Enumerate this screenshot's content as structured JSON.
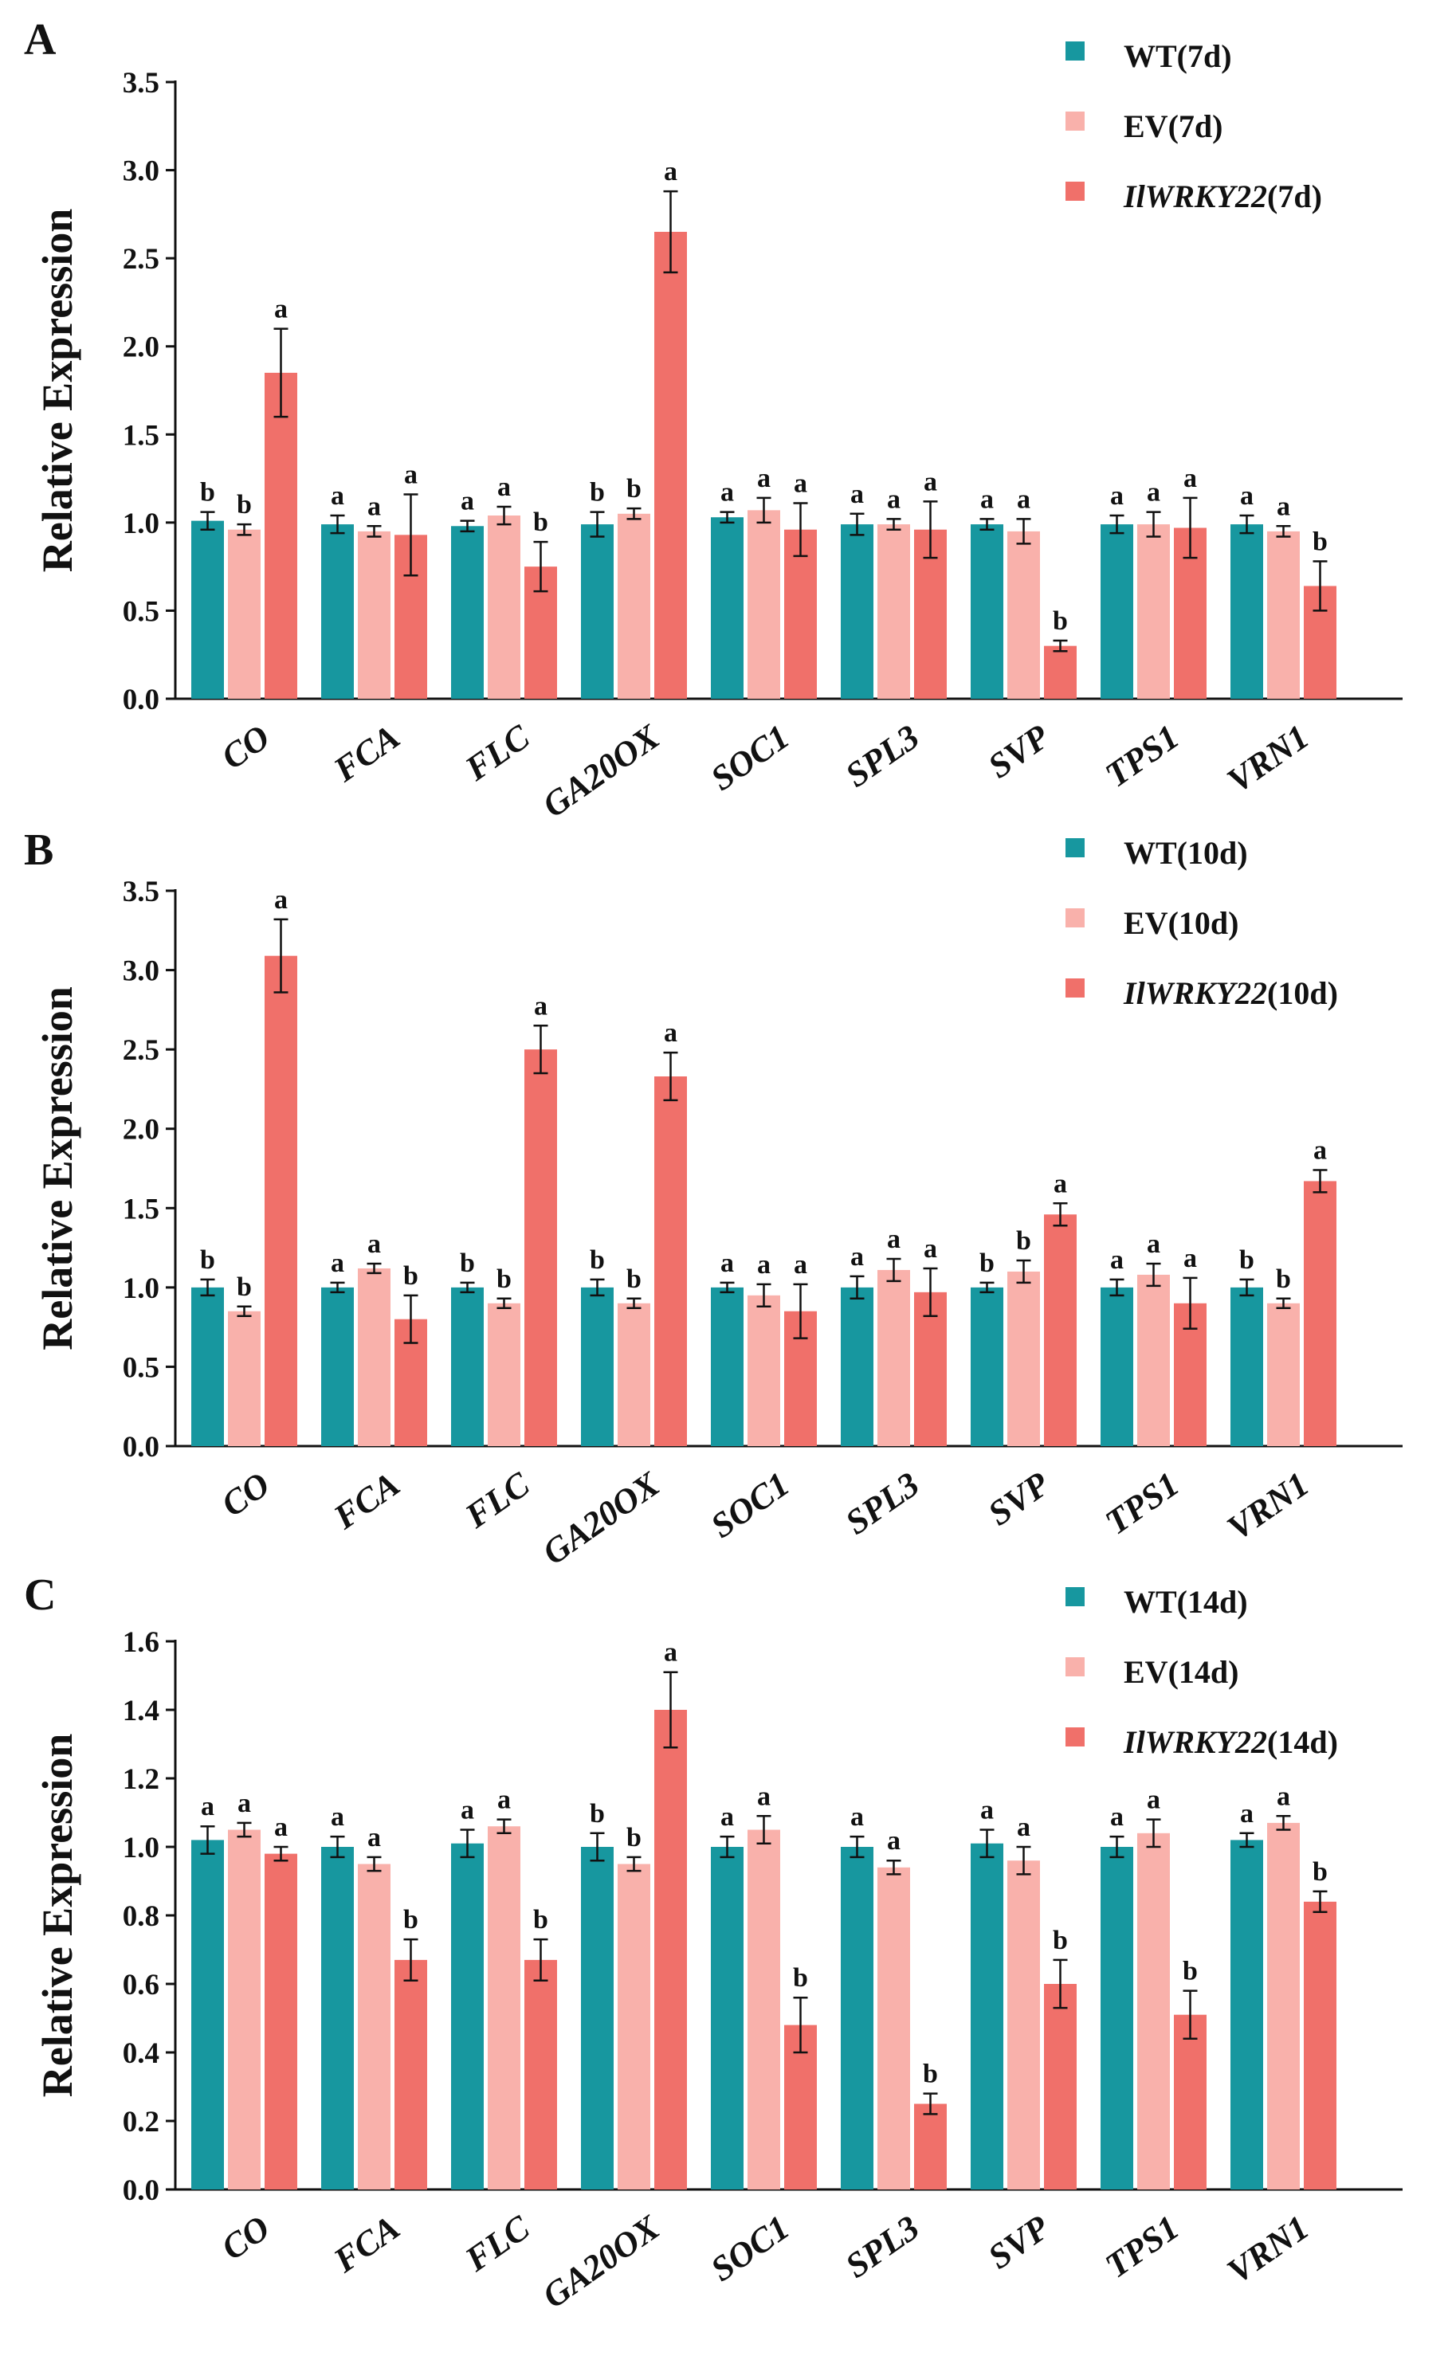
{
  "chart_data": [
    {
      "type": "bar",
      "panel": "A",
      "ylabel": "Relative Expression",
      "ylim": [
        0,
        3.5
      ],
      "yticks": [
        "0.0",
        "0.5",
        "1.0",
        "1.5",
        "2.0",
        "2.5",
        "3.0",
        "3.5"
      ],
      "categories": [
        "CO",
        "FCA",
        "FLC",
        "GA20OX",
        "SOC1",
        "SPL3",
        "SVP",
        "TPS1",
        "VRN1"
      ],
      "series": [
        {
          "name": "WT(7d)",
          "legend_prefix": "",
          "legend_suffix": "WT(7d)",
          "color": "#17979f",
          "values": [
            1.01,
            0.99,
            0.98,
            0.99,
            1.03,
            0.99,
            0.99,
            0.99,
            0.99
          ],
          "errors": [
            0.05,
            0.05,
            0.03,
            0.07,
            0.03,
            0.06,
            0.03,
            0.05,
            0.05
          ],
          "labels": [
            "b",
            "a",
            "a",
            "b",
            "a",
            "a",
            "a",
            "a",
            "a"
          ]
        },
        {
          "name": "EV(7d)",
          "legend_prefix": "",
          "legend_suffix": "EV(7d)",
          "color": "#f9b1ab",
          "values": [
            0.96,
            0.95,
            1.04,
            1.05,
            1.07,
            0.99,
            0.95,
            0.99,
            0.95
          ],
          "errors": [
            0.03,
            0.03,
            0.05,
            0.03,
            0.07,
            0.03,
            0.07,
            0.07,
            0.03
          ],
          "labels": [
            "b",
            "a",
            "a",
            "b",
            "a",
            "a",
            "a",
            "a",
            "a"
          ]
        },
        {
          "name": "IlWRKY22(7d)",
          "legend_prefix": "IlWRKY22",
          "legend_suffix": "(7d)",
          "color": "#f0706a",
          "values": [
            1.85,
            0.93,
            0.75,
            2.65,
            0.96,
            0.96,
            0.3,
            0.97,
            0.64
          ],
          "errors": [
            0.25,
            0.23,
            0.14,
            0.23,
            0.15,
            0.16,
            0.03,
            0.17,
            0.14
          ],
          "labels": [
            "a",
            "a",
            "b",
            "a",
            "a",
            "a",
            "b",
            "a",
            "b"
          ]
        }
      ]
    },
    {
      "type": "bar",
      "panel": "B",
      "ylabel": "Relative Expression",
      "ylim": [
        0,
        3.5
      ],
      "yticks": [
        "0.0",
        "0.5",
        "1.0",
        "1.5",
        "2.0",
        "2.5",
        "3.0",
        "3.5"
      ],
      "categories": [
        "CO",
        "FCA",
        "FLC",
        "GA20OX",
        "SOC1",
        "SPL3",
        "SVP",
        "TPS1",
        "VRN1"
      ],
      "series": [
        {
          "name": "WT(10d)",
          "legend_prefix": "",
          "legend_suffix": "WT(10d)",
          "color": "#17979f",
          "values": [
            1.0,
            1.0,
            1.0,
            1.0,
            1.0,
            1.0,
            1.0,
            1.0,
            1.0
          ],
          "errors": [
            0.05,
            0.03,
            0.03,
            0.05,
            0.03,
            0.07,
            0.03,
            0.05,
            0.05
          ],
          "labels": [
            "b",
            "a",
            "b",
            "b",
            "a",
            "a",
            "b",
            "a",
            "b"
          ]
        },
        {
          "name": "EV(10d)",
          "legend_prefix": "",
          "legend_suffix": "EV(10d)",
          "color": "#f9b1ab",
          "values": [
            0.85,
            1.12,
            0.9,
            0.9,
            0.95,
            1.11,
            1.1,
            1.08,
            0.9
          ],
          "errors": [
            0.03,
            0.03,
            0.03,
            0.03,
            0.07,
            0.07,
            0.07,
            0.07,
            0.03
          ],
          "labels": [
            "b",
            "a",
            "b",
            "b",
            "a",
            "a",
            "b",
            "a",
            "b"
          ]
        },
        {
          "name": "IlWRKY22(10d)",
          "legend_prefix": "IlWRKY22",
          "legend_suffix": "(10d)",
          "color": "#f0706a",
          "values": [
            3.09,
            0.8,
            2.5,
            2.33,
            0.85,
            0.97,
            1.46,
            0.9,
            1.67
          ],
          "errors": [
            0.23,
            0.15,
            0.15,
            0.15,
            0.17,
            0.15,
            0.07,
            0.16,
            0.07
          ],
          "labels": [
            "a",
            "b",
            "a",
            "a",
            "a",
            "a",
            "a",
            "a",
            "a"
          ]
        }
      ]
    },
    {
      "type": "bar",
      "panel": "C",
      "ylabel": "Relative Expression",
      "ylim": [
        0,
        1.6
      ],
      "yticks": [
        "0.0",
        "0.2",
        "0.4",
        "0.6",
        "0.8",
        "1.0",
        "1.2",
        "1.4",
        "1.6"
      ],
      "categories": [
        "CO",
        "FCA",
        "FLC",
        "GA20OX",
        "SOC1",
        "SPL3",
        "SVP",
        "TPS1",
        "VRN1"
      ],
      "series": [
        {
          "name": "WT(14d)",
          "legend_prefix": "",
          "legend_suffix": "WT(14d)",
          "color": "#17979f",
          "values": [
            1.02,
            1.0,
            1.01,
            1.0,
            1.0,
            1.0,
            1.01,
            1.0,
            1.02
          ],
          "errors": [
            0.04,
            0.03,
            0.04,
            0.04,
            0.03,
            0.03,
            0.04,
            0.03,
            0.02
          ],
          "labels": [
            "a",
            "a",
            "a",
            "b",
            "a",
            "a",
            "a",
            "a",
            "a"
          ]
        },
        {
          "name": "EV(14d)",
          "legend_prefix": "",
          "legend_suffix": "EV(14d)",
          "color": "#f9b1ab",
          "values": [
            1.05,
            0.95,
            1.06,
            0.95,
            1.05,
            0.94,
            0.96,
            1.04,
            1.07
          ],
          "errors": [
            0.02,
            0.02,
            0.02,
            0.02,
            0.04,
            0.02,
            0.04,
            0.04,
            0.02
          ],
          "labels": [
            "a",
            "a",
            "a",
            "b",
            "a",
            "a",
            "a",
            "a",
            "a"
          ]
        },
        {
          "name": "IlWRKY22(14d)",
          "legend_prefix": "IlWRKY22",
          "legend_suffix": "(14d)",
          "color": "#f0706a",
          "values": [
            0.98,
            0.67,
            0.67,
            1.4,
            0.48,
            0.25,
            0.6,
            0.51,
            0.84
          ],
          "errors": [
            0.02,
            0.06,
            0.06,
            0.11,
            0.08,
            0.03,
            0.07,
            0.07,
            0.03
          ],
          "labels": [
            "a",
            "b",
            "b",
            "a",
            "b",
            "b",
            "b",
            "b",
            "b"
          ]
        }
      ]
    }
  ]
}
